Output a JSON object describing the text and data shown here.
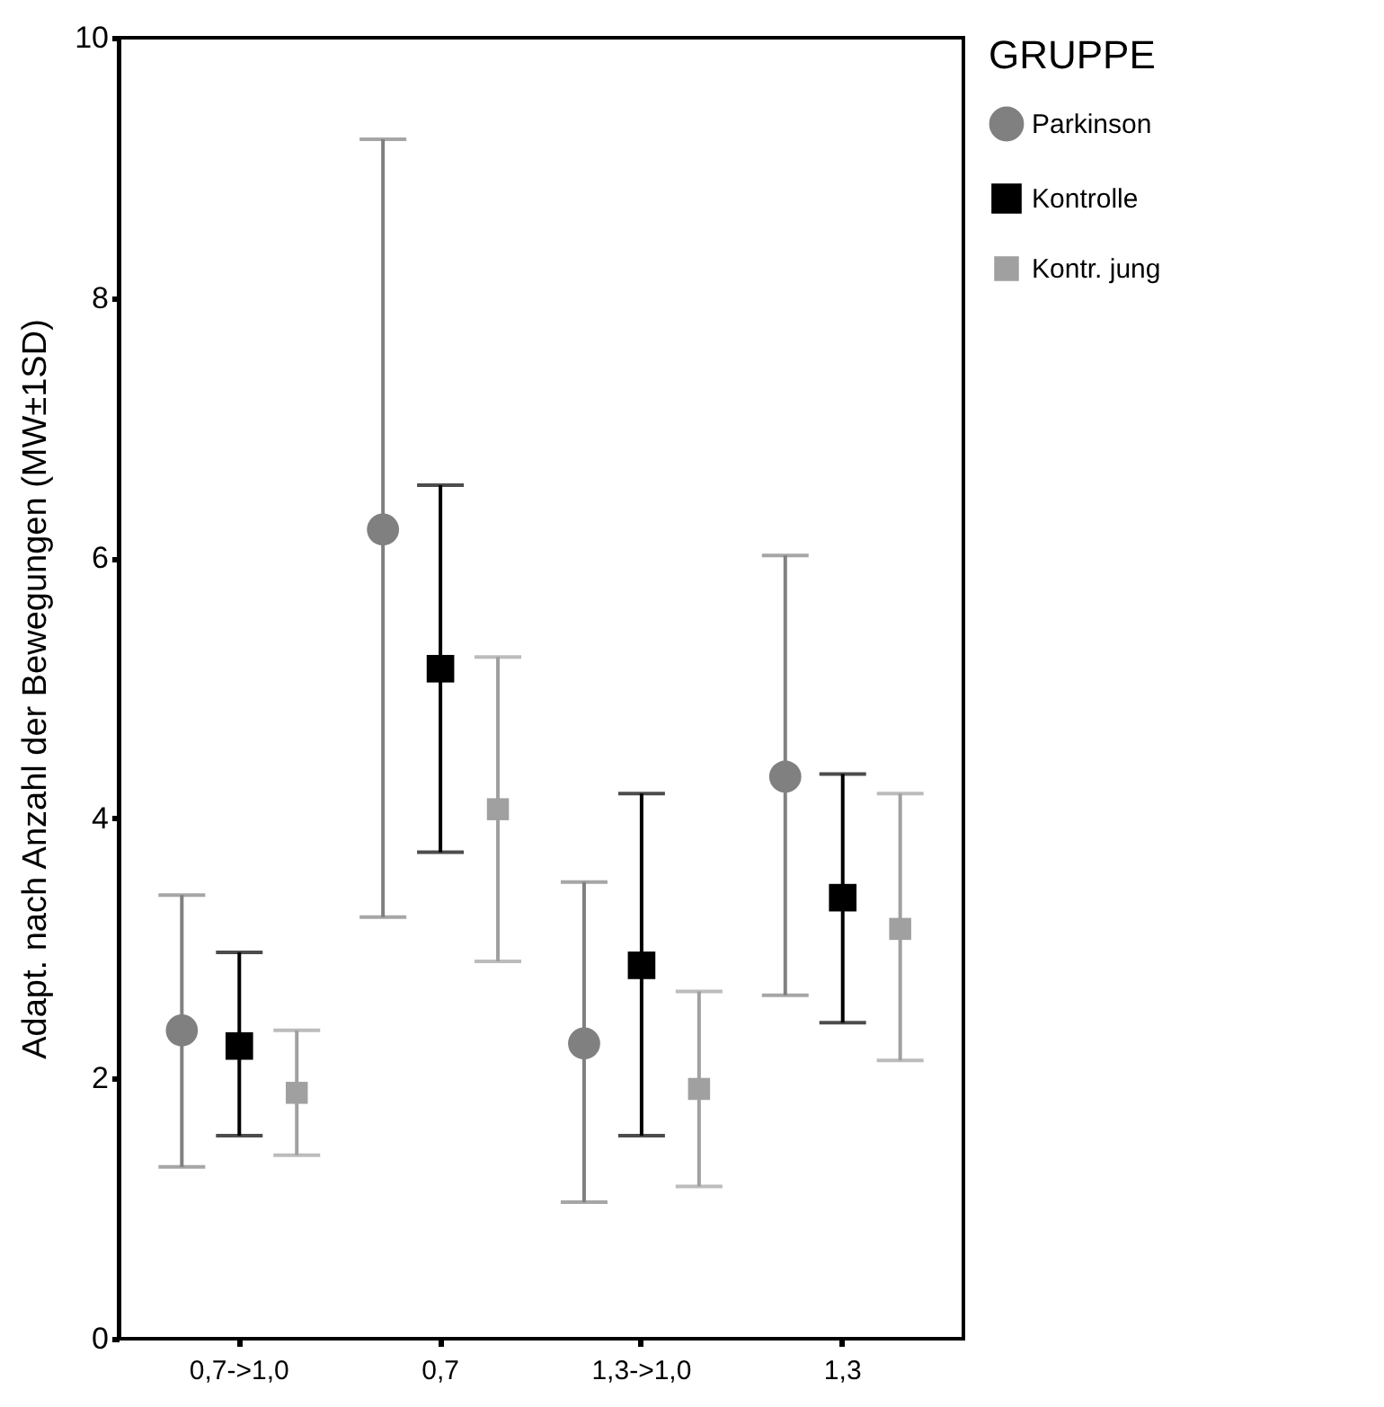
{
  "chart_data": {
    "type": "scatter",
    "ylabel": "Adapt. nach Anzahl der Bewegungen (MW±1SD)",
    "legend_title": "GRUPPE",
    "categories": [
      "0,7->1,0",
      "0,7",
      "1,3->1,0",
      "1,3"
    ],
    "ylim": [
      0,
      10
    ],
    "yticks": [
      0,
      2,
      4,
      6,
      8,
      10
    ],
    "grid": false,
    "legend": "right",
    "series": [
      {
        "name": "Parkinson",
        "color": "#808080",
        "marker": "circle",
        "values": [
          2.37,
          6.22,
          2.27,
          4.32
        ],
        "errors": [
          [
            1.32,
            3.41
          ],
          [
            3.24,
            9.22
          ],
          [
            1.05,
            3.51
          ],
          [
            2.64,
            6.02
          ]
        ]
      },
      {
        "name": "Kontrolle",
        "color": "#000000",
        "marker": "square",
        "values": [
          2.25,
          5.15,
          2.87,
          3.39
        ],
        "errors": [
          [
            1.56,
            2.97
          ],
          [
            3.74,
            6.56
          ],
          [
            1.56,
            4.19
          ],
          [
            2.43,
            4.34
          ]
        ]
      },
      {
        "name": "Kontr. jung",
        "color": "#a0a0a0",
        "marker": "square",
        "values": [
          1.89,
          4.07,
          1.92,
          3.15
        ],
        "errors": [
          [
            1.41,
            2.37
          ],
          [
            2.9,
            5.24
          ],
          [
            1.17,
            2.67
          ],
          [
            2.14,
            4.19
          ]
        ]
      }
    ]
  }
}
